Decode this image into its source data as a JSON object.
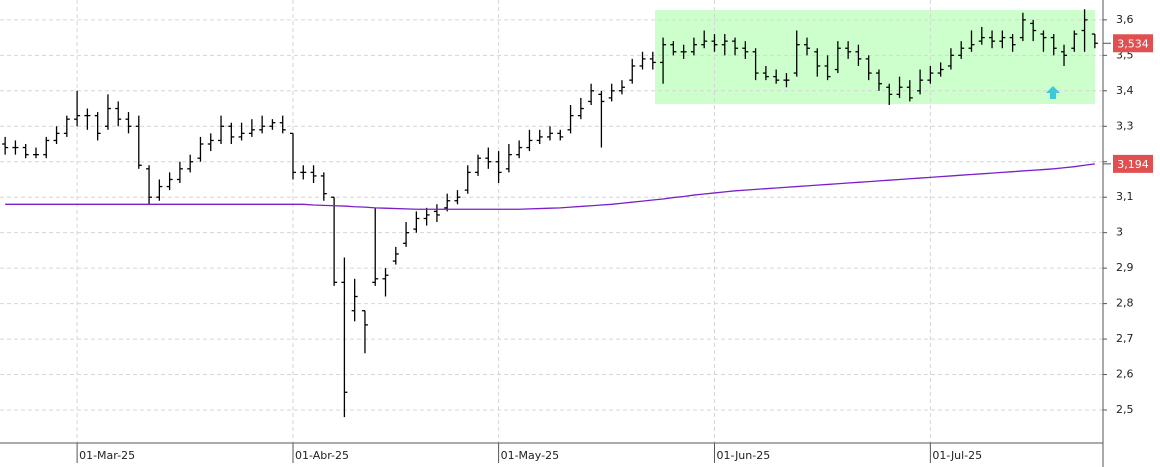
{
  "chart_data": {
    "type": "ohlc",
    "categories": [
      null,
      null,
      null,
      null,
      null,
      null,
      null,
      "01-Mar-25",
      null,
      null,
      null,
      null,
      null,
      null,
      null,
      null,
      null,
      null,
      null,
      null,
      null,
      null,
      null,
      null,
      null,
      null,
      null,
      null,
      "01-Abr-25",
      null,
      null,
      null,
      null,
      null,
      null,
      null,
      null,
      null,
      null,
      null,
      null,
      null,
      null,
      null,
      null,
      null,
      null,
      null,
      "01-May-25",
      null,
      null,
      null,
      null,
      null,
      null,
      null,
      null,
      null,
      null,
      null,
      null,
      null,
      null,
      null,
      null,
      null,
      null,
      null,
      null,
      "01-Jun-25",
      null,
      null,
      null,
      null,
      null,
      null,
      null,
      null,
      null,
      null,
      null,
      null,
      null,
      null,
      null,
      null,
      null,
      null,
      null,
      null,
      "01-Jul-25",
      null,
      null,
      null,
      null,
      null,
      null,
      null,
      null,
      null,
      null,
      null,
      null,
      null,
      null,
      null,
      null
    ],
    "bars": [
      [
        3.25,
        3.27,
        3.22,
        3.24
      ],
      [
        3.24,
        3.26,
        3.22,
        3.24
      ],
      [
        3.24,
        3.25,
        3.21,
        3.22
      ],
      [
        3.22,
        3.24,
        3.21,
        3.22
      ],
      [
        3.22,
        3.27,
        3.21,
        3.26
      ],
      [
        3.26,
        3.3,
        3.25,
        3.28
      ],
      [
        3.28,
        3.33,
        3.27,
        3.32
      ],
      [
        3.32,
        3.4,
        3.3,
        3.33
      ],
      [
        3.33,
        3.35,
        3.29,
        3.33
      ],
      [
        3.33,
        3.34,
        3.26,
        3.28
      ],
      [
        3.3,
        3.39,
        3.29,
        3.35
      ],
      [
        3.35,
        3.37,
        3.3,
        3.32
      ],
      [
        3.32,
        3.34,
        3.28,
        3.3
      ],
      [
        3.3,
        3.33,
        3.18,
        3.19
      ],
      [
        3.18,
        3.19,
        3.08,
        3.1
      ],
      [
        3.1,
        3.15,
        3.09,
        3.13
      ],
      [
        3.13,
        3.17,
        3.12,
        3.15
      ],
      [
        3.15,
        3.2,
        3.14,
        3.18
      ],
      [
        3.18,
        3.22,
        3.17,
        3.2
      ],
      [
        3.21,
        3.27,
        3.2,
        3.25
      ],
      [
        3.25,
        3.28,
        3.23,
        3.26
      ],
      [
        3.26,
        3.33,
        3.25,
        3.3
      ],
      [
        3.3,
        3.31,
        3.25,
        3.27
      ],
      [
        3.27,
        3.31,
        3.26,
        3.28
      ],
      [
        3.28,
        3.32,
        3.27,
        3.29
      ],
      [
        3.29,
        3.33,
        3.28,
        3.3
      ],
      [
        3.3,
        3.32,
        3.29,
        3.31
      ],
      [
        3.31,
        3.33,
        3.28,
        3.29
      ],
      [
        3.28,
        3.28,
        3.15,
        3.17
      ],
      [
        3.17,
        3.19,
        3.15,
        3.17
      ],
      [
        3.17,
        3.19,
        3.14,
        3.16
      ],
      [
        3.16,
        3.17,
        3.09,
        3.11
      ],
      [
        3.1,
        3.1,
        2.85,
        2.86
      ],
      [
        2.86,
        2.93,
        2.48,
        2.55
      ],
      [
        2.78,
        2.87,
        2.75,
        2.82
      ],
      [
        2.78,
        2.78,
        2.66,
        2.74
      ],
      [
        2.86,
        3.07,
        2.85,
        2.87
      ],
      [
        2.87,
        2.9,
        2.82,
        2.88
      ],
      [
        2.92,
        2.96,
        2.91,
        2.94
      ],
      [
        2.97,
        3.03,
        2.96,
        3.0
      ],
      [
        3.01,
        3.06,
        3.0,
        3.04
      ],
      [
        3.04,
        3.07,
        3.02,
        3.05
      ],
      [
        3.06,
        3.08,
        3.03,
        3.05
      ],
      [
        3.07,
        3.11,
        3.06,
        3.09
      ],
      [
        3.09,
        3.12,
        3.08,
        3.1
      ],
      [
        3.12,
        3.19,
        3.11,
        3.17
      ],
      [
        3.17,
        3.22,
        3.16,
        3.21
      ],
      [
        3.21,
        3.24,
        3.18,
        3.2
      ],
      [
        3.2,
        3.23,
        3.14,
        3.17
      ],
      [
        3.18,
        3.25,
        3.17,
        3.22
      ],
      [
        3.22,
        3.26,
        3.21,
        3.24
      ],
      [
        3.24,
        3.29,
        3.23,
        3.26
      ],
      [
        3.26,
        3.29,
        3.25,
        3.27
      ],
      [
        3.27,
        3.3,
        3.26,
        3.28
      ],
      [
        3.28,
        3.29,
        3.26,
        3.27
      ],
      [
        3.29,
        3.36,
        3.28,
        3.33
      ],
      [
        3.33,
        3.38,
        3.32,
        3.35
      ],
      [
        3.37,
        3.42,
        3.36,
        3.4
      ],
      [
        3.39,
        3.4,
        3.24,
        3.37
      ],
      [
        3.38,
        3.42,
        3.37,
        3.4
      ],
      [
        3.4,
        3.43,
        3.39,
        3.41
      ],
      [
        3.43,
        3.49,
        3.42,
        3.47
      ],
      [
        3.47,
        3.51,
        3.46,
        3.49
      ],
      [
        3.49,
        3.51,
        3.46,
        3.48
      ],
      [
        3.48,
        3.55,
        3.42,
        3.53
      ],
      [
        3.53,
        3.54,
        3.5,
        3.51
      ],
      [
        3.51,
        3.53,
        3.49,
        3.51
      ],
      [
        3.51,
        3.55,
        3.5,
        3.53
      ],
      [
        3.53,
        3.57,
        3.52,
        3.54
      ],
      [
        3.54,
        3.56,
        3.51,
        3.53
      ],
      [
        3.53,
        3.56,
        3.5,
        3.54
      ],
      [
        3.54,
        3.55,
        3.5,
        3.52
      ],
      [
        3.52,
        3.54,
        3.49,
        3.51
      ],
      [
        3.51,
        3.52,
        3.43,
        3.45
      ],
      [
        3.45,
        3.47,
        3.43,
        3.44
      ],
      [
        3.44,
        3.46,
        3.42,
        3.43
      ],
      [
        3.43,
        3.45,
        3.41,
        3.43
      ],
      [
        3.45,
        3.57,
        3.44,
        3.53
      ],
      [
        3.53,
        3.55,
        3.5,
        3.52
      ],
      [
        3.51,
        3.52,
        3.44,
        3.47
      ],
      [
        3.47,
        3.5,
        3.43,
        3.44
      ],
      [
        3.46,
        3.54,
        3.45,
        3.52
      ],
      [
        3.52,
        3.54,
        3.49,
        3.51
      ],
      [
        3.51,
        3.53,
        3.47,
        3.49
      ],
      [
        3.49,
        3.5,
        3.43,
        3.45
      ],
      [
        3.45,
        3.46,
        3.4,
        3.42
      ],
      [
        3.41,
        3.42,
        3.36,
        3.39
      ],
      [
        3.39,
        3.44,
        3.38,
        3.41
      ],
      [
        3.41,
        3.43,
        3.37,
        3.38
      ],
      [
        3.4,
        3.46,
        3.39,
        3.43
      ],
      [
        3.43,
        3.47,
        3.42,
        3.45
      ],
      [
        3.45,
        3.48,
        3.44,
        3.46
      ],
      [
        3.47,
        3.52,
        3.46,
        3.5
      ],
      [
        3.5,
        3.54,
        3.49,
        3.52
      ],
      [
        3.52,
        3.57,
        3.51,
        3.53
      ],
      [
        3.54,
        3.58,
        3.53,
        3.55
      ],
      [
        3.55,
        3.57,
        3.52,
        3.54
      ],
      [
        3.54,
        3.57,
        3.52,
        3.55
      ],
      [
        3.55,
        3.56,
        3.51,
        3.53
      ],
      [
        3.55,
        3.62,
        3.54,
        3.6
      ],
      [
        3.59,
        3.6,
        3.54,
        3.57
      ],
      [
        3.56,
        3.57,
        3.51,
        3.55
      ],
      [
        3.55,
        3.56,
        3.5,
        3.52
      ],
      [
        3.51,
        3.53,
        3.47,
        3.5
      ],
      [
        3.52,
        3.57,
        3.51,
        3.56
      ],
      [
        3.57,
        3.63,
        3.51,
        3.6
      ],
      [
        3.56,
        3.56,
        3.52,
        3.534
      ]
    ],
    "color": "#000000",
    "ma": {
      "color": "#7b1fc8",
      "values": [
        3.08,
        3.08,
        3.08,
        3.08,
        3.08,
        3.08,
        3.08,
        3.08,
        3.08,
        3.08,
        3.08,
        3.08,
        3.08,
        3.08,
        3.08,
        3.08,
        3.08,
        3.08,
        3.08,
        3.08,
        3.08,
        3.08,
        3.08,
        3.08,
        3.08,
        3.08,
        3.08,
        3.08,
        3.08,
        3.08,
        3.078,
        3.077,
        3.076,
        3.075,
        3.073,
        3.072,
        3.07,
        3.069,
        3.068,
        3.067,
        3.066,
        3.066,
        3.066,
        3.066,
        3.066,
        3.066,
        3.066,
        3.066,
        3.066,
        3.066,
        3.066,
        3.067,
        3.068,
        3.069,
        3.07,
        3.072,
        3.074,
        3.076,
        3.078,
        3.08,
        3.083,
        3.086,
        3.089,
        3.092,
        3.095,
        3.099,
        3.102,
        3.106,
        3.109,
        3.112,
        3.115,
        3.118,
        3.12,
        3.122,
        3.124,
        3.126,
        3.128,
        3.13,
        3.132,
        3.134,
        3.136,
        3.138,
        3.14,
        3.142,
        3.144,
        3.146,
        3.148,
        3.15,
        3.152,
        3.154,
        3.156,
        3.158,
        3.16,
        3.162,
        3.164,
        3.166,
        3.168,
        3.17,
        3.172,
        3.174,
        3.176,
        3.178,
        3.18,
        3.183,
        3.186,
        3.19,
        3.194
      ]
    },
    "last_labels": [
      {
        "value": 3.534,
        "label": "3,534",
        "color": "#e05050"
      },
      {
        "value": 3.194,
        "label": "3,194",
        "color": "#e05050"
      }
    ],
    "ylim": [
      2.407,
      3.656
    ],
    "yticks": [
      {
        "value": 2.5,
        "label": "2,5"
      },
      {
        "value": 2.6,
        "label": "2,6"
      },
      {
        "value": 2.7,
        "label": "2,7"
      },
      {
        "value": 2.8,
        "label": "2,8"
      },
      {
        "value": 2.9,
        "label": "2,9"
      },
      3,
      {
        "value": 3.1,
        "label": "3,1"
      },
      {
        "value": 3.2,
        "label": "3,2"
      },
      {
        "value": 3.3,
        "label": "3,3"
      },
      {
        "value": 3.4,
        "label": "3,4"
      },
      {
        "value": 3.5,
        "label": "3,5"
      },
      {
        "value": 3.6,
        "label": "3,6"
      }
    ],
    "grid": true
  }
}
